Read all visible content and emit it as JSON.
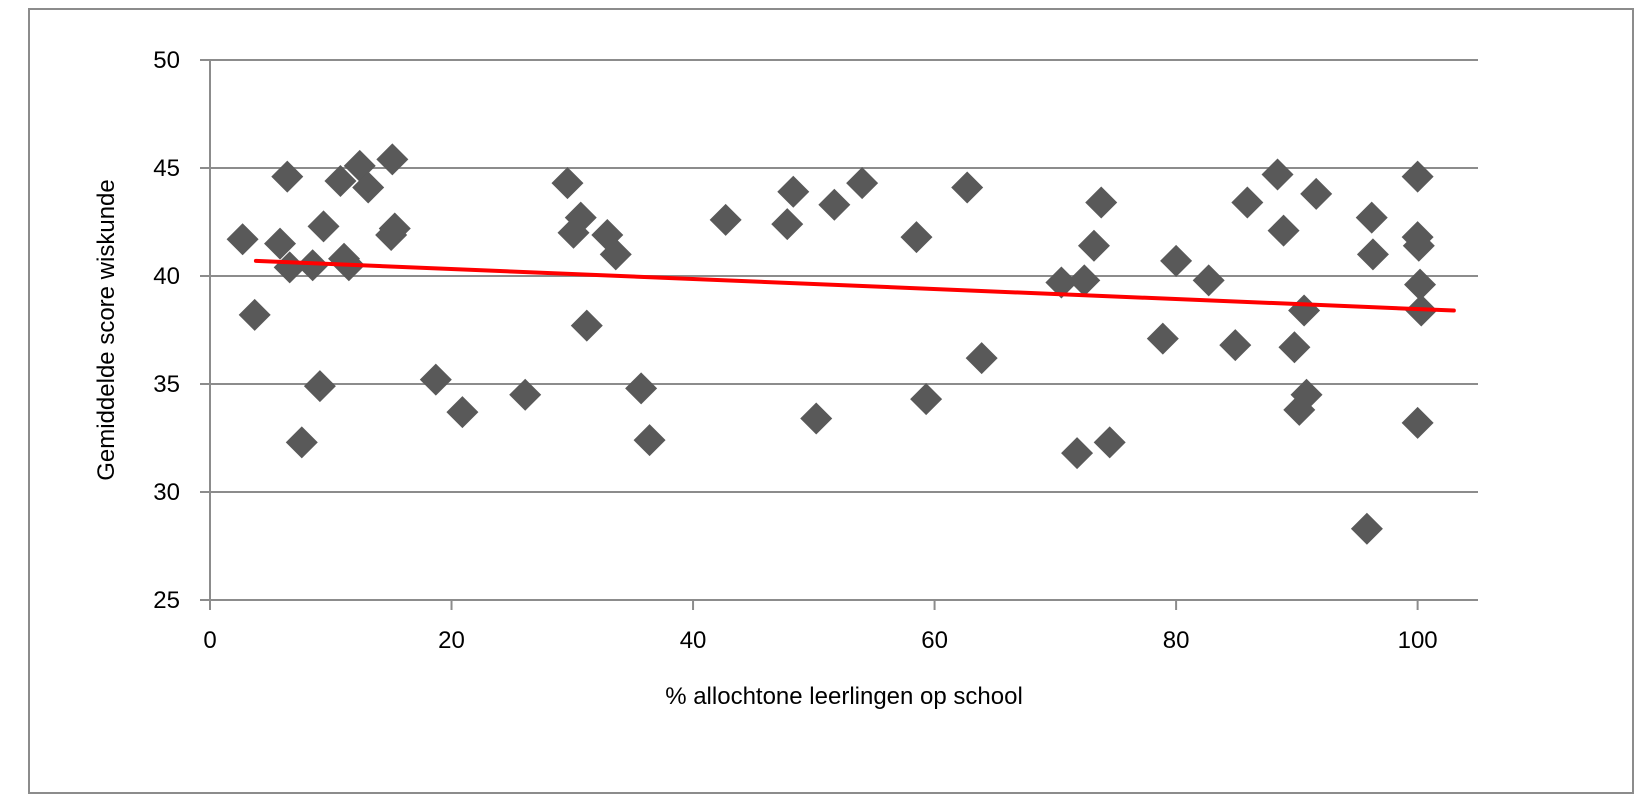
{
  "chart_data": {
    "type": "scatter",
    "title": "",
    "xlabel": "% allochtone leerlingen op school",
    "ylabel": "Gemiddelde score wiskunde",
    "xlim": [
      0,
      105
    ],
    "ylim": [
      25,
      50
    ],
    "x_ticks": [
      0,
      20,
      40,
      60,
      80,
      100
    ],
    "y_ticks": [
      25,
      30,
      35,
      40,
      45,
      50
    ],
    "grid": "horizontal",
    "legend": "none",
    "marker_color": "#595959",
    "marker_shape": "diamond",
    "trendline": {
      "color": "#ff0000",
      "from": [
        3.8,
        40.7
      ],
      "to": [
        103,
        38.4
      ]
    },
    "points": [
      [
        2.7,
        41.7
      ],
      [
        3.7,
        38.2
      ],
      [
        5.8,
        41.5
      ],
      [
        6.4,
        44.6
      ],
      [
        6.6,
        40.4
      ],
      [
        7.6,
        32.3
      ],
      [
        8.5,
        40.5
      ],
      [
        9.1,
        34.9
      ],
      [
        9.4,
        42.3
      ],
      [
        10.8,
        44.4
      ],
      [
        11.1,
        40.8
      ],
      [
        11.5,
        40.5
      ],
      [
        12.4,
        45.1
      ],
      [
        13.1,
        44.1
      ],
      [
        15.1,
        45.4
      ],
      [
        15.0,
        41.9
      ],
      [
        15.3,
        42.2
      ],
      [
        18.7,
        35.2
      ],
      [
        20.9,
        33.7
      ],
      [
        26.1,
        34.5
      ],
      [
        29.6,
        44.3
      ],
      [
        30.1,
        42.0
      ],
      [
        30.7,
        42.7
      ],
      [
        31.2,
        37.7
      ],
      [
        32.9,
        41.9
      ],
      [
        33.6,
        41.0
      ],
      [
        35.7,
        34.8
      ],
      [
        36.4,
        32.4
      ],
      [
        42.7,
        42.6
      ],
      [
        47.8,
        42.4
      ],
      [
        48.3,
        43.9
      ],
      [
        50.2,
        33.4
      ],
      [
        51.7,
        43.3
      ],
      [
        54.0,
        44.3
      ],
      [
        58.5,
        41.8
      ],
      [
        59.3,
        34.3
      ],
      [
        62.7,
        44.1
      ],
      [
        63.9,
        36.2
      ],
      [
        70.5,
        39.7
      ],
      [
        71.8,
        31.8
      ],
      [
        72.4,
        39.8
      ],
      [
        73.2,
        41.4
      ],
      [
        73.8,
        43.4
      ],
      [
        74.5,
        32.3
      ],
      [
        78.9,
        37.1
      ],
      [
        80.0,
        40.7
      ],
      [
        82.7,
        39.8
      ],
      [
        84.9,
        36.8
      ],
      [
        85.9,
        43.4
      ],
      [
        88.4,
        44.7
      ],
      [
        88.9,
        42.1
      ],
      [
        89.8,
        36.7
      ],
      [
        90.2,
        33.8
      ],
      [
        90.6,
        38.4
      ],
      [
        90.8,
        34.5
      ],
      [
        91.6,
        43.8
      ],
      [
        95.8,
        28.3
      ],
      [
        96.2,
        42.7
      ],
      [
        96.3,
        41.0
      ],
      [
        100.0,
        41.8
      ],
      [
        100.0,
        44.6
      ],
      [
        100.1,
        41.4
      ],
      [
        100.2,
        39.6
      ],
      [
        100.3,
        38.4
      ],
      [
        100.0,
        33.2
      ]
    ]
  }
}
